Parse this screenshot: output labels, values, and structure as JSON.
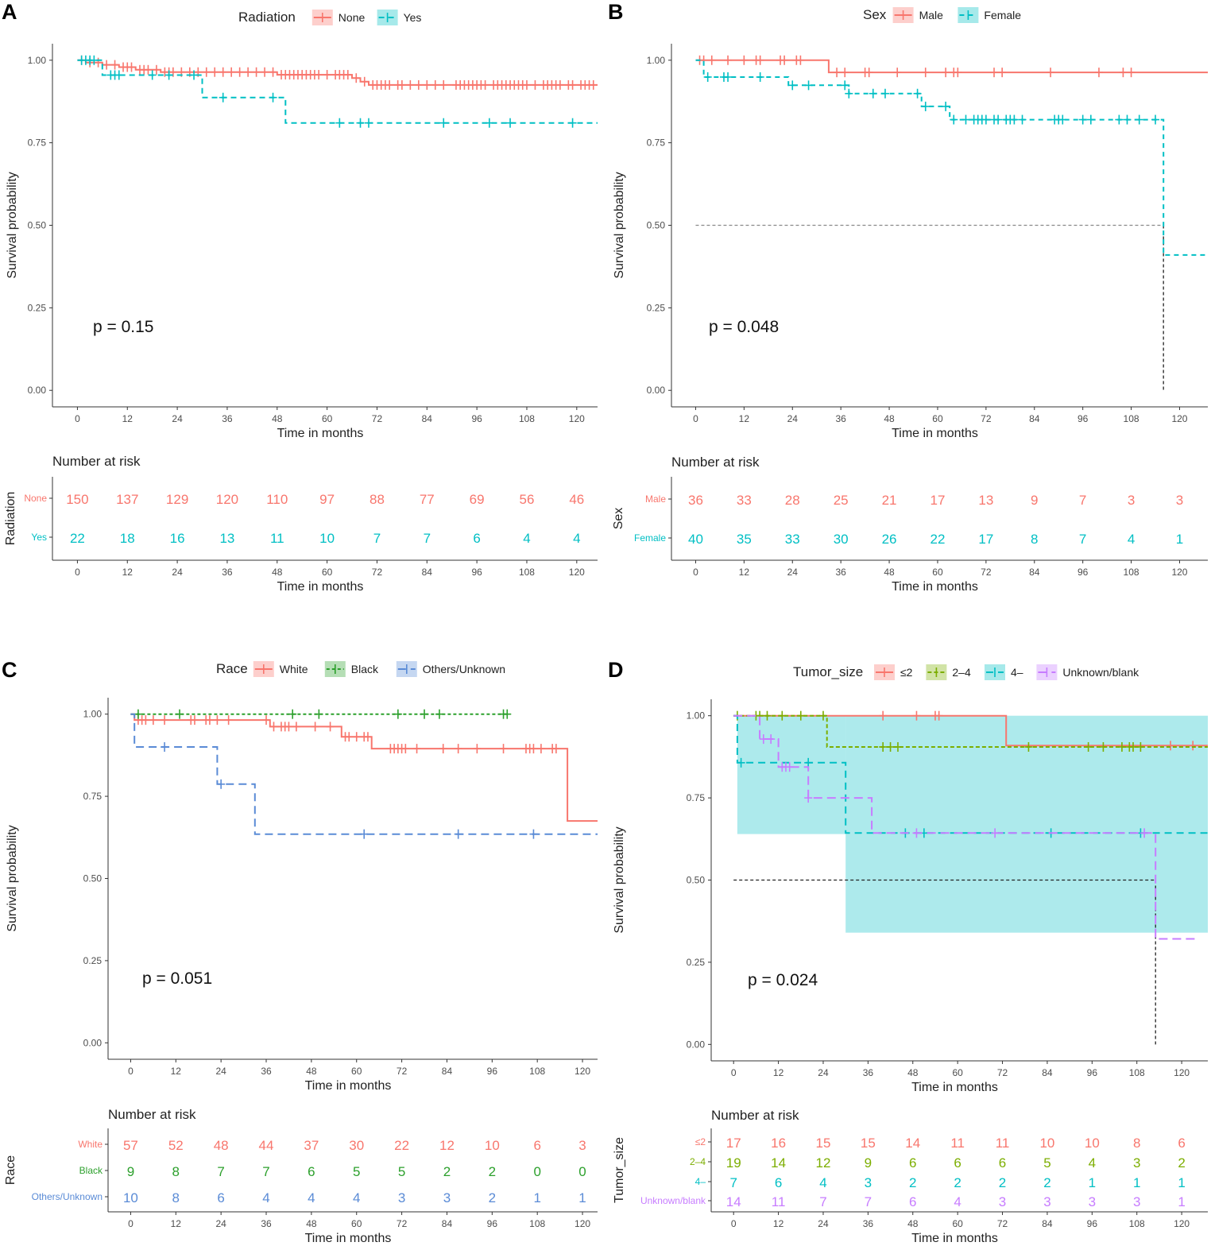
{
  "figure": {
    "x_axis_title": "Time in months",
    "y_axis_title": "Survival probability",
    "risk_title": "Number at risk"
  },
  "chart_data": [
    {
      "panel": "A",
      "type": "line",
      "title": "",
      "legend_title": "Radiation",
      "xlabel": "Time in months",
      "ylabel": "Survival probability",
      "xlim": [
        -6,
        125
      ],
      "ylim": [
        -0.05,
        1.05
      ],
      "xticks": [
        0,
        12,
        24,
        36,
        48,
        60,
        72,
        84,
        96,
        108,
        120
      ],
      "yticks": [
        0.0,
        0.25,
        0.5,
        0.75,
        1.0
      ],
      "ytick_labels": [
        "0.00",
        "0.25",
        "0.50",
        "0.75",
        "1.00"
      ],
      "pvalue": "p = 0.15",
      "risk_group_label": "Radiation",
      "median_line": null,
      "series": [
        {
          "name": "None",
          "color": "#F8766D",
          "dash": "",
          "steps": [
            [
              0,
              1.0
            ],
            [
              2,
              0.993
            ],
            [
              6,
              0.986
            ],
            [
              10,
              0.979
            ],
            [
              14,
              0.971
            ],
            [
              20,
              0.964
            ],
            [
              48,
              0.956
            ],
            [
              66,
              0.946
            ],
            [
              68,
              0.935
            ],
            [
              70,
              0.925
            ],
            [
              125,
              0.925
            ]
          ],
          "censor": [
            1,
            3,
            5,
            7,
            9,
            11,
            12,
            13,
            15,
            16,
            17,
            19,
            21,
            22,
            23,
            25,
            27,
            29,
            31,
            33,
            35,
            37,
            39,
            41,
            43,
            45,
            47,
            49,
            50,
            51,
            52,
            53,
            54,
            55,
            56,
            57,
            58,
            60,
            62,
            63,
            64,
            65,
            67,
            69,
            71,
            72,
            73,
            74,
            75,
            77,
            78,
            80,
            82,
            84,
            86,
            88,
            91,
            92,
            93,
            94,
            95,
            96,
            97,
            98,
            100,
            101,
            102,
            103,
            104,
            105,
            106,
            107,
            108,
            110,
            112,
            113,
            114,
            115,
            116,
            118,
            119,
            121,
            122,
            123,
            124
          ]
        },
        {
          "name": "Yes",
          "color": "#00BFC4",
          "dash": "7,5",
          "steps": [
            [
              0,
              1.0
            ],
            [
              6,
              0.955
            ],
            [
              30,
              0.887
            ],
            [
              50,
              0.81
            ],
            [
              125,
              0.81
            ]
          ],
          "censor": [
            1,
            2,
            3,
            4,
            8,
            9,
            10,
            18,
            22,
            28,
            35,
            47,
            63,
            68,
            70,
            88,
            99,
            104,
            119
          ]
        }
      ],
      "risk_table": [
        {
          "label": "None",
          "color": "#F8766D",
          "values": [
            150,
            137,
            129,
            120,
            110,
            97,
            88,
            77,
            69,
            56,
            46
          ]
        },
        {
          "label": "Yes",
          "color": "#00BFC4",
          "values": [
            22,
            18,
            16,
            13,
            11,
            10,
            7,
            7,
            6,
            4,
            4
          ]
        }
      ]
    },
    {
      "panel": "B",
      "type": "line",
      "title": "",
      "legend_title": "Sex",
      "xlabel": "Time in months",
      "ylabel": "Survival probability",
      "xlim": [
        -6,
        127
      ],
      "ylim": [
        -0.05,
        1.05
      ],
      "xticks": [
        0,
        12,
        24,
        36,
        48,
        60,
        72,
        84,
        96,
        108,
        120
      ],
      "yticks": [
        0.0,
        0.25,
        0.5,
        0.75,
        1.0
      ],
      "ytick_labels": [
        "0.00",
        "0.25",
        "0.50",
        "0.75",
        "1.00"
      ],
      "pvalue": "p = 0.048",
      "risk_group_label": "Sex",
      "median_line": {
        "y": 0.5,
        "x_end": 116
      },
      "series": [
        {
          "name": "Male",
          "color": "#F8766D",
          "dash": "",
          "steps": [
            [
              0,
              1.0
            ],
            [
              33,
              0.963
            ],
            [
              127,
              0.963
            ]
          ],
          "censor": [
            1,
            2,
            4,
            8,
            12,
            15,
            16,
            21,
            22,
            25,
            26,
            35,
            37,
            42,
            43,
            50,
            57,
            62,
            64,
            65,
            74,
            76,
            88,
            100,
            106,
            108
          ]
        },
        {
          "name": "Female",
          "color": "#00BFC4",
          "dash": "6,5",
          "steps": [
            [
              0,
              1.0
            ],
            [
              2,
              0.949
            ],
            [
              23,
              0.924
            ],
            [
              38,
              0.899
            ],
            [
              56,
              0.86
            ],
            [
              63,
              0.82
            ],
            [
              116,
              0.41
            ],
            [
              127,
              0.41
            ]
          ],
          "censor": [
            3,
            7,
            8,
            16,
            24,
            28,
            37,
            38,
            44,
            47,
            55,
            57,
            62,
            64,
            67,
            69,
            70,
            71,
            72,
            74,
            75,
            77,
            78,
            79,
            81,
            89,
            90,
            91,
            96,
            98,
            105,
            107,
            110,
            114
          ]
        }
      ],
      "risk_table": [
        {
          "label": "Male",
          "color": "#F8766D",
          "values": [
            36,
            33,
            28,
            25,
            21,
            17,
            13,
            9,
            7,
            3,
            3
          ]
        },
        {
          "label": "Female",
          "color": "#00BFC4",
          "values": [
            40,
            35,
            33,
            30,
            26,
            22,
            17,
            8,
            7,
            4,
            1
          ]
        }
      ]
    },
    {
      "panel": "C",
      "type": "line",
      "title": "",
      "legend_title": "Race",
      "xlabel": "Time in months",
      "ylabel": "Survival probability",
      "xlim": [
        -6,
        124
      ],
      "ylim": [
        -0.05,
        1.05
      ],
      "xticks": [
        0,
        12,
        24,
        36,
        48,
        60,
        72,
        84,
        96,
        108,
        120
      ],
      "yticks": [
        0.0,
        0.25,
        0.5,
        0.75,
        1.0
      ],
      "ytick_labels": [
        "0.00",
        "0.25",
        "0.50",
        "0.75",
        "1.00"
      ],
      "pvalue": "p = 0.051",
      "risk_group_label": "Race",
      "median_line": null,
      "series": [
        {
          "name": "White",
          "color": "#F8766D",
          "dash": "",
          "steps": [
            [
              0,
              1.0
            ],
            [
              1,
              0.982
            ],
            [
              37,
              0.962
            ],
            [
              56,
              0.931
            ],
            [
              64,
              0.895
            ],
            [
              116,
              0.675
            ],
            [
              124,
              0.675
            ]
          ],
          "censor": [
            2,
            3,
            4,
            6,
            9,
            16,
            17,
            20,
            21,
            23,
            26,
            36,
            38,
            40,
            41,
            42,
            44,
            49,
            53,
            57,
            58,
            60,
            62,
            63,
            69,
            70,
            71,
            72,
            73,
            76,
            83,
            87,
            92,
            99,
            105,
            106,
            107,
            109,
            112,
            113
          ]
        },
        {
          "name": "Black",
          "color": "#2CA02C",
          "dash": "4,3",
          "steps": [
            [
              0,
              1.0
            ],
            [
              100,
              1.0
            ]
          ],
          "censor": [
            2,
            13,
            43,
            50,
            71,
            78,
            82,
            99,
            100
          ]
        },
        {
          "name": "Others/Unknown",
          "color": "#5A8BD6",
          "dash": "10,6",
          "steps": [
            [
              0,
              1.0
            ],
            [
              1,
              0.9
            ],
            [
              23,
              0.787
            ],
            [
              33,
              0.635
            ],
            [
              124,
              0.635
            ]
          ],
          "censor": [
            9,
            24,
            62,
            87,
            107
          ]
        }
      ],
      "risk_table": [
        {
          "label": "White",
          "color": "#F8766D",
          "values": [
            57,
            52,
            48,
            44,
            37,
            30,
            22,
            12,
            10,
            6,
            3
          ]
        },
        {
          "label": "Black",
          "color": "#2CA02C",
          "values": [
            9,
            8,
            7,
            7,
            6,
            5,
            5,
            2,
            2,
            0,
            0
          ]
        },
        {
          "label": "Others/Unknown",
          "color": "#5A8BD6",
          "values": [
            10,
            8,
            6,
            4,
            4,
            4,
            3,
            3,
            2,
            1,
            1
          ]
        }
      ]
    },
    {
      "panel": "D",
      "type": "line",
      "title": "",
      "legend_title": "Tumor_size",
      "xlabel": "Time in months",
      "ylabel": "Survival probability",
      "xlim": [
        -6,
        127
      ],
      "ylim": [
        -0.05,
        1.05
      ],
      "xticks": [
        0,
        12,
        24,
        36,
        48,
        60,
        72,
        84,
        96,
        108,
        120
      ],
      "yticks": [
        0.0,
        0.25,
        0.5,
        0.75,
        1.0
      ],
      "ytick_labels": [
        "0.00",
        "0.25",
        "0.50",
        "0.75",
        "1.00"
      ],
      "pvalue": "p = 0.024",
      "risk_group_label": "Tumor_size",
      "median_line": {
        "y": 0.5,
        "x_end": 113
      },
      "confidence_band": {
        "series": "4-",
        "color": "#00BFC4",
        "steps": [
          [
            1,
            0.64,
            1.0
          ],
          [
            30,
            0.34,
            1.0
          ],
          [
            127,
            0.34,
            1.0
          ]
        ]
      },
      "series": [
        {
          "name": "≤2",
          "color": "#F8766D",
          "dash": "",
          "steps": [
            [
              0,
              1.0
            ],
            [
              73,
              0.909
            ],
            [
              127,
              0.909
            ]
          ],
          "censor": [
            40,
            49,
            54,
            55,
            117,
            123
          ]
        },
        {
          "name": "2–4",
          "color": "#7CAE00",
          "dash": "5,3",
          "steps": [
            [
              0,
              1.0
            ],
            [
              25,
              0.905
            ],
            [
              127,
              0.905
            ]
          ],
          "censor": [
            1,
            6,
            7,
            9,
            13,
            18,
            24,
            40,
            42,
            44,
            79,
            95,
            99,
            104,
            106,
            107,
            109
          ]
        },
        {
          "name": "4–",
          "color": "#00BFC4",
          "dash": "9,6",
          "steps": [
            [
              0,
              1.0
            ],
            [
              1,
              0.857
            ],
            [
              30,
              0.643
            ],
            [
              127,
              0.643
            ]
          ],
          "censor": [
            2,
            20,
            46,
            51,
            85,
            109
          ]
        },
        {
          "name": "Unknown/blank",
          "color": "#C77CFF",
          "dash": "11,6",
          "steps": [
            [
              0,
              1.0
            ],
            [
              7,
              0.929
            ],
            [
              12,
              0.844
            ],
            [
              20,
              0.75
            ],
            [
              37,
              0.643
            ],
            [
              113,
              0.321
            ],
            [
              124,
              0.321
            ]
          ],
          "censor": [
            8,
            10,
            13,
            14,
            15,
            20,
            49,
            70,
            110
          ]
        }
      ],
      "risk_table": [
        {
          "label": "≤2",
          "color": "#F8766D",
          "values": [
            17,
            16,
            15,
            15,
            14,
            11,
            11,
            10,
            10,
            8,
            6
          ]
        },
        {
          "label": "2–4",
          "color": "#7CAE00",
          "values": [
            19,
            14,
            12,
            9,
            6,
            6,
            6,
            5,
            4,
            3,
            2
          ]
        },
        {
          "label": "4–",
          "color": "#00BFC4",
          "values": [
            7,
            6,
            4,
            3,
            2,
            2,
            2,
            2,
            1,
            1,
            1
          ]
        },
        {
          "label": "Unknown/blank",
          "color": "#C77CFF",
          "values": [
            14,
            11,
            7,
            7,
            6,
            4,
            3,
            3,
            3,
            3,
            1
          ]
        }
      ]
    }
  ]
}
